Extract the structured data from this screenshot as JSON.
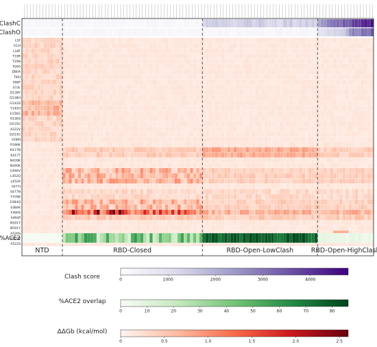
{
  "chart_data": {
    "type": "heatmap",
    "row_labels_top": [
      "ClashC",
      "ClashO"
    ],
    "row_labels_mutations": [
      "L5F",
      "S13I",
      "L18F",
      "T19R",
      "T20N",
      "P26S",
      "D80A",
      "T95I",
      "S98F",
      "S13L",
      "D138Y",
      "D138H",
      "G142D",
      "Y145H",
      "E156G",
      "R190S",
      "D215G",
      "A222V",
      "D253G",
      "V289I",
      "R346K",
      "K417N",
      "K417T",
      "N439K",
      "N440K",
      "G446V",
      "L452Q",
      "L452R",
      "S477I",
      "S477N",
      "T478K",
      "E484Q",
      "E484K",
      "F490S",
      "S494P",
      "N501T",
      "N501Y",
      "A520S",
      "A522V",
      "A522S"
    ],
    "row_label_bottom": "%ACE2",
    "groups": [
      {
        "label": "NTD"
      },
      {
        "label": "RBD-Closed"
      },
      {
        "label": "RBD-Open-LowClash"
      },
      {
        "label": "RBD-Open-HighClash"
      }
    ],
    "colorbars": [
      {
        "title": "Clash score",
        "ticks": [
          0,
          1000,
          2000,
          3000,
          4000
        ],
        "range": [
          0,
          4800
        ]
      },
      {
        "title": "%ACE2 overlap",
        "ticks": [
          0,
          10,
          20,
          30,
          40,
          50,
          60,
          70,
          80
        ],
        "range": [
          0,
          86
        ]
      },
      {
        "title": "ΔΔGb (kcal/mol)",
        "ticks": [
          "0",
          "0.5",
          "1.0",
          "1.5",
          "2.0",
          "2.5"
        ],
        "range": [
          0,
          2.6
        ]
      }
    ]
  },
  "colors": {
    "clash": [
      "#fcfbfd",
      "#dadaeb",
      "#9e9ac8",
      "#6a51a3",
      "#3f007d"
    ],
    "ace2": [
      "#f7fcf5",
      "#c7e9c0",
      "#74c476",
      "#238b45",
      "#00441b"
    ],
    "ddg": [
      "#fff5f0",
      "#fcbba1",
      "#fb6a4a",
      "#cb181d",
      "#67000d"
    ]
  }
}
